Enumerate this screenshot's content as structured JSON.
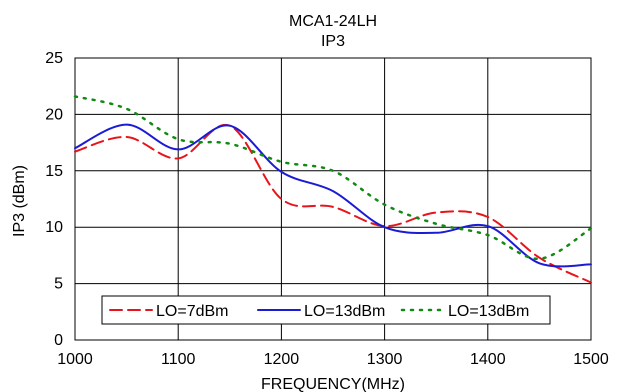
{
  "chart_data": {
    "type": "line",
    "title": "MCA1-24LH",
    "subtitle": "IP3",
    "xlabel": "FREQUENCY(MHz)",
    "ylabel": "IP3 (dBm)",
    "xlim": [
      1000,
      1500
    ],
    "ylim": [
      0,
      25
    ],
    "xticks": [
      1000,
      1100,
      1200,
      1300,
      1400,
      1500
    ],
    "yticks": [
      0,
      5,
      10,
      15,
      20,
      25
    ],
    "grid": true,
    "legend_position": "bottom",
    "series": [
      {
        "name": "LO=7dBm",
        "color": "#e8141b",
        "style": "dash",
        "x": [
          1000,
          1050,
          1100,
          1150,
          1200,
          1250,
          1300,
          1350,
          1400,
          1450,
          1500
        ],
        "y": [
          16.7,
          18.0,
          16.1,
          19.0,
          12.5,
          11.8,
          10.1,
          11.3,
          10.9,
          7.3,
          5.1
        ]
      },
      {
        "name": "LO=13dBm",
        "color": "#1b1bd6",
        "style": "solid",
        "x": [
          1000,
          1050,
          1100,
          1150,
          1200,
          1250,
          1300,
          1350,
          1400,
          1450,
          1500
        ],
        "y": [
          17.0,
          19.1,
          16.9,
          19.0,
          14.9,
          13.2,
          10.0,
          9.5,
          10.1,
          6.8,
          6.7
        ]
      },
      {
        "name": "LO=13dBm",
        "color": "#108a10",
        "style": "dot",
        "x": [
          1000,
          1050,
          1100,
          1150,
          1200,
          1250,
          1300,
          1350,
          1400,
          1450,
          1500
        ],
        "y": [
          21.6,
          20.5,
          17.8,
          17.4,
          15.8,
          15.0,
          12.0,
          10.3,
          9.3,
          7.2,
          9.9
        ]
      }
    ]
  }
}
